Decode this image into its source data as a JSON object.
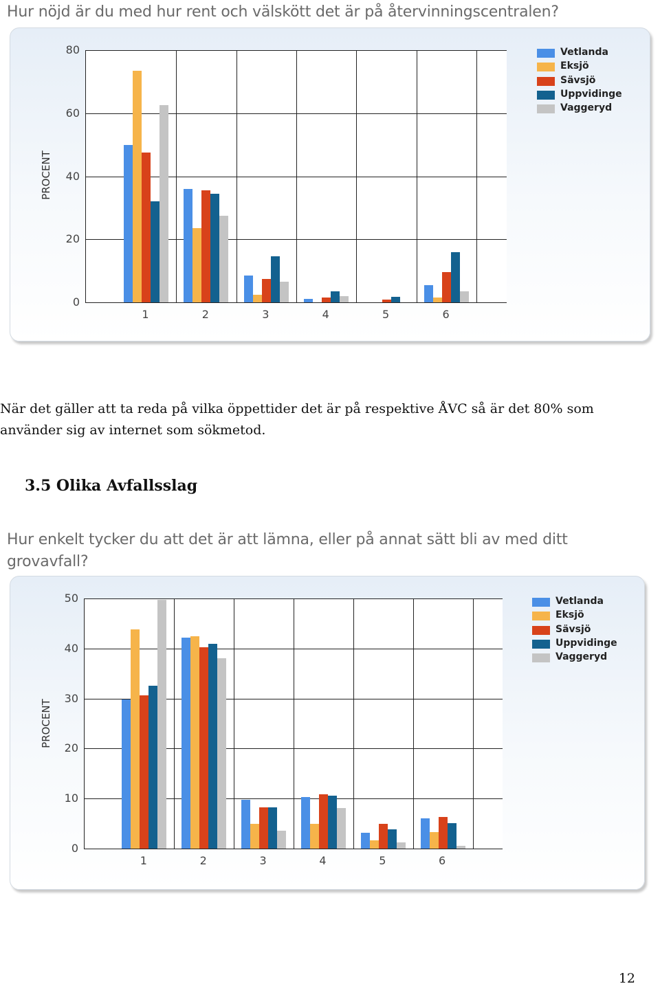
{
  "charts": [
    {
      "question": "Hur nöjd är du med hur rent och välskött det är på återvinningscentralen?",
      "y_axis_label": "PROCENT"
    },
    {
      "question": "Hur enkelt tycker du att det är att lämna, eller på annat sätt bli av med ditt grovavfall?",
      "y_axis_label": "PROCENT"
    }
  ],
  "paragraph": "När det gäller att ta reda på vilka öppettider det är på respektive ÅVC så är det 80% som använder sig av internet som sökmetod.",
  "section_heading": "3.5 Olika Avfallsslag",
  "page_number": "12",
  "chart_data": [
    {
      "type": "bar",
      "title": "Hur nöjd är du med hur rent och välskött det är på återvinningscentralen?",
      "xlabel": "",
      "ylabel": "PROCENT",
      "categories": [
        "1",
        "2",
        "3",
        "4",
        "5",
        "6"
      ],
      "ylim": [
        0,
        80
      ],
      "yticks": [
        0,
        20,
        40,
        60,
        80
      ],
      "grid": true,
      "legend_position": "top-right",
      "series": [
        {
          "name": "Vetlanda",
          "color": "#4a8fe6",
          "values": [
            50,
            36,
            8.5,
            1,
            0,
            5.5
          ]
        },
        {
          "name": "Eksjö",
          "color": "#f6b44a",
          "values": [
            73.5,
            23.5,
            2.5,
            0,
            0,
            1.5
          ]
        },
        {
          "name": "Sävsjö",
          "color": "#d8421a",
          "values": [
            47.5,
            35.5,
            7.5,
            1.5,
            0.8,
            9.5
          ]
        },
        {
          "name": "Uppvidinge",
          "color": "#13618f",
          "values": [
            32,
            34.5,
            14.5,
            3.5,
            1.8,
            16
          ]
        },
        {
          "name": "Vaggeryd",
          "color": "#c4c4c4",
          "values": [
            62.5,
            27.5,
            6.5,
            2,
            0,
            3.5
          ]
        }
      ]
    },
    {
      "type": "bar",
      "title": "Hur enkelt tycker du att det är att lämna, eller på annat sätt bli av med ditt grovavfall?",
      "xlabel": "",
      "ylabel": "PROCENT",
      "categories": [
        "1",
        "2",
        "3",
        "4",
        "5",
        "6"
      ],
      "ylim": [
        0,
        50
      ],
      "yticks": [
        0,
        10,
        20,
        30,
        40,
        50
      ],
      "grid": true,
      "legend_position": "top-right",
      "series": [
        {
          "name": "Vetlanda",
          "color": "#4a8fe6",
          "values": [
            29.8,
            42.2,
            9.8,
            10.3,
            3.1,
            6
          ]
        },
        {
          "name": "Eksjö",
          "color": "#f6b44a",
          "values": [
            43.8,
            42.5,
            5,
            5,
            1.6,
            3.3
          ]
        },
        {
          "name": "Sävsjö",
          "color": "#d8421a",
          "values": [
            30.6,
            40.3,
            8.2,
            10.8,
            5,
            6.3
          ]
        },
        {
          "name": "Uppvidinge",
          "color": "#13618f",
          "values": [
            32.6,
            40.9,
            8.2,
            10.6,
            3.9,
            5.1
          ]
        },
        {
          "name": "Vaggeryd",
          "color": "#c4c4c4",
          "values": [
            49.7,
            38,
            3.6,
            8.1,
            1.3,
            0.6
          ]
        }
      ]
    }
  ]
}
